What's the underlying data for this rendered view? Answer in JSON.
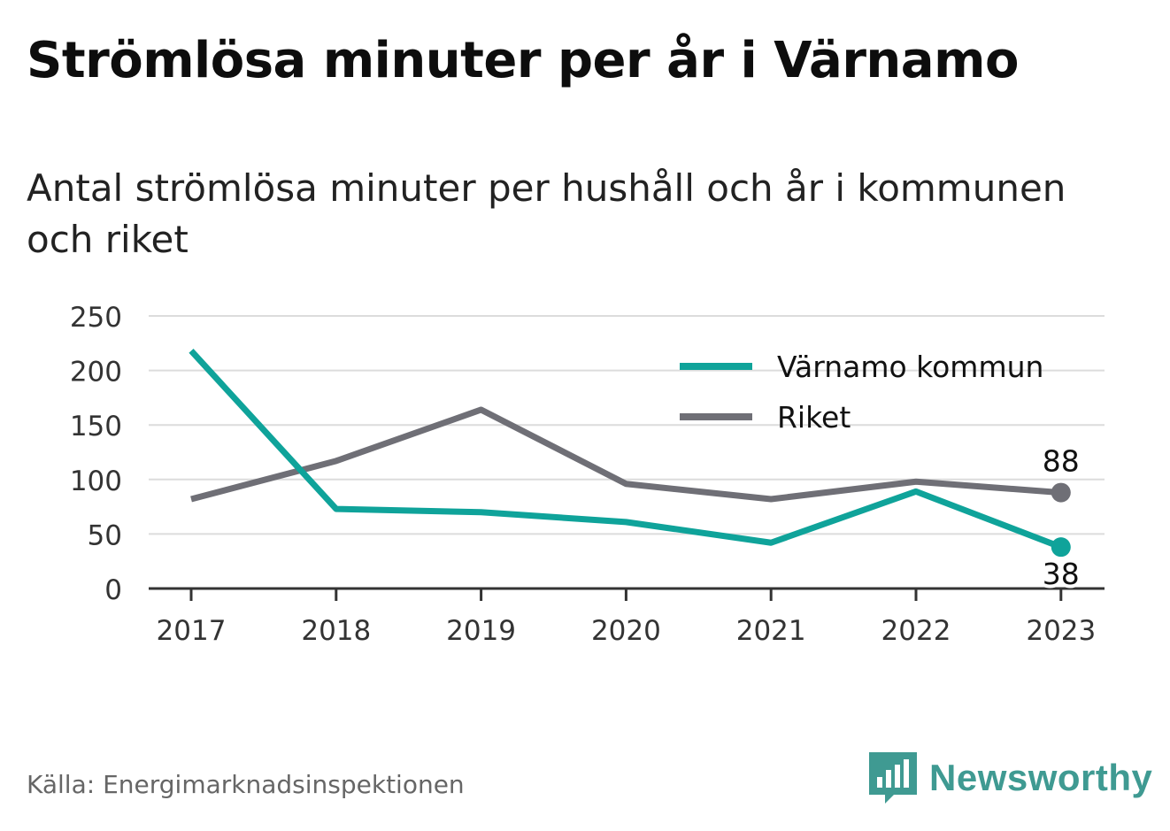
{
  "chart_data": {
    "type": "line",
    "title": "Strömlösa minuter per år i Värnamo",
    "subtitle": "Antal strömlösa minuter per hushåll och år i kommunen och riket",
    "x": [
      "2017",
      "2018",
      "2019",
      "2020",
      "2021",
      "2022",
      "2023"
    ],
    "ylim": [
      0,
      250
    ],
    "yticks": [
      "0",
      "50",
      "100",
      "150",
      "200",
      "250"
    ],
    "grid": true,
    "legend_position": "top-right",
    "series": [
      {
        "name": "Värnamo kommun",
        "values": [
          218,
          73,
          70,
          61,
          42,
          89,
          38
        ],
        "color": "#0fa39a",
        "end_label": "38"
      },
      {
        "name": "Riket",
        "values": [
          82,
          117,
          164,
          96,
          82,
          98,
          88
        ],
        "color": "#6f6f76",
        "end_label": "88"
      }
    ]
  },
  "footer": {
    "source": "Källa: Energimarknadsinspektionen",
    "brand": "Newsworthy",
    "brand_icon": "bar-chart-speech-bubble-icon",
    "brand_color": "#3f9a92"
  }
}
